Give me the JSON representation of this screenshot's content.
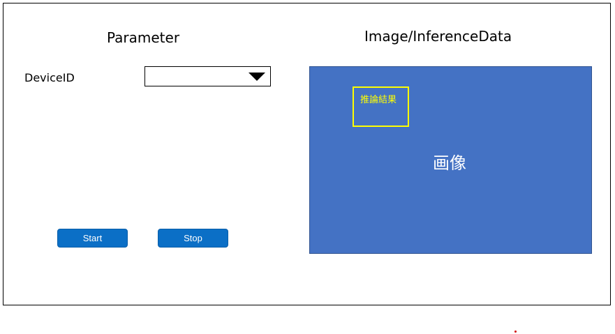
{
  "parameter_panel": {
    "title": "Parameter",
    "device_id_label": "DeviceID",
    "device_id_value": "",
    "start_label": "Start",
    "stop_label": "Stop"
  },
  "image_panel": {
    "title": "Image/InferenceData",
    "image_text": "画像",
    "inference_label": "推論結果"
  },
  "colors": {
    "image_background": "#4472c4",
    "inference_box": "#ffff00",
    "button": "#0b6fc6"
  },
  "icons": {
    "dropdown": "chevron-down-icon"
  }
}
